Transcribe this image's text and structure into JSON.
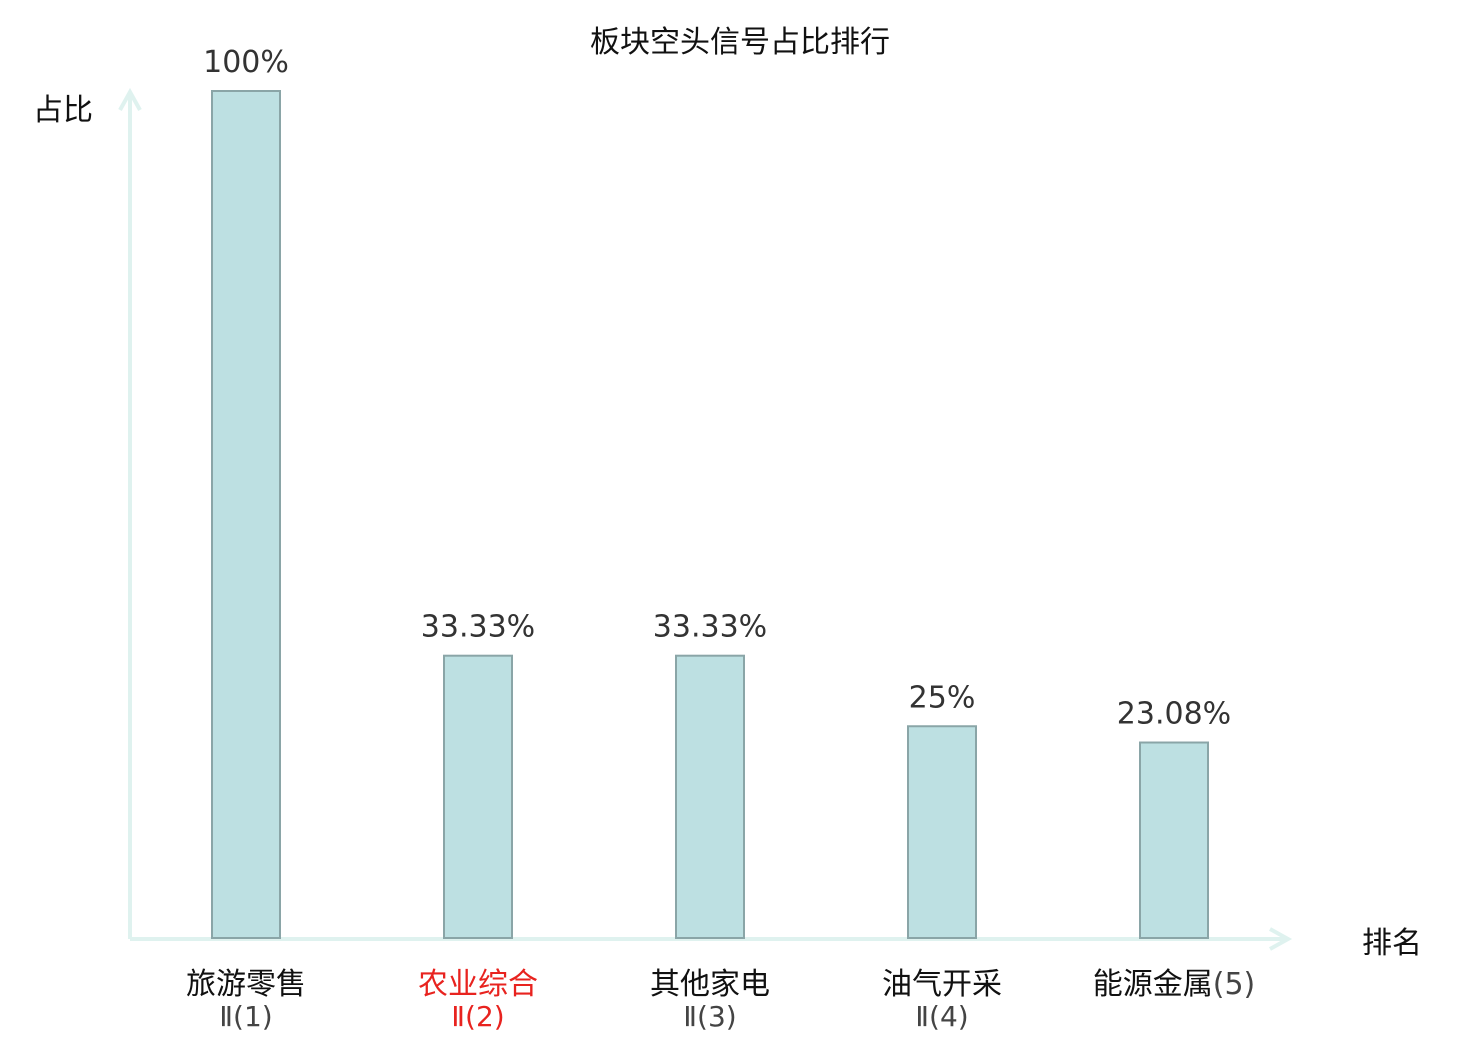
{
  "chart_data": {
    "type": "bar",
    "title": "板块空头信号占比排行",
    "ylabel": "占比",
    "xlabel": "排名",
    "ylim": [
      0,
      100
    ],
    "grid": false,
    "categories": [
      {
        "name": "旅游零售",
        "rank": "Ⅱ(1)",
        "highlight": false
      },
      {
        "name": "农业综合",
        "rank": "Ⅱ(2)",
        "highlight": true
      },
      {
        "name": "其他家电",
        "rank": "Ⅱ(3)",
        "highlight": false
      },
      {
        "name": "油气开采",
        "rank": "Ⅱ(4)",
        "highlight": false
      },
      {
        "name": "能源金属",
        "rank": "(5)",
        "highlight": false
      }
    ],
    "values": [
      100,
      33.33,
      33.33,
      25,
      23.08
    ],
    "value_labels": [
      "100%",
      "33.33%",
      "33.33%",
      "25%",
      "23.08%"
    ],
    "colors": {
      "bar_fill": "#bde0e2",
      "bar_stroke": "#8aa5a7",
      "axis": "#dff2ef",
      "highlight_text": "#e8231f",
      "normal_text": "#111111",
      "sub_text": "#444444"
    }
  }
}
